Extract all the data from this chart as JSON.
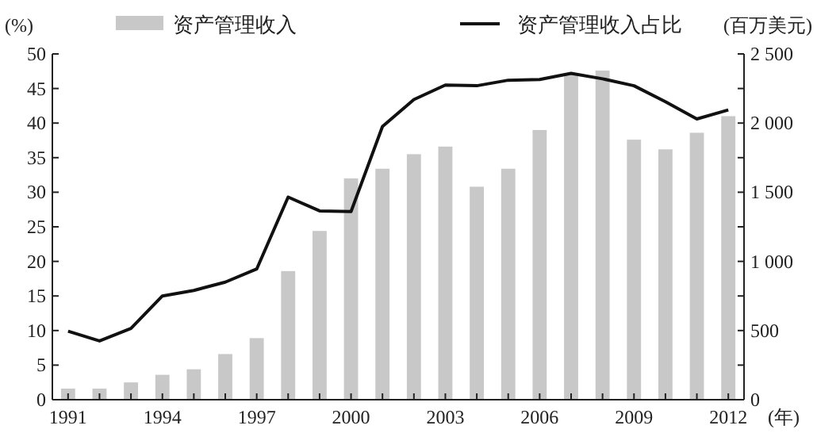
{
  "chart_data": {
    "type": "bar",
    "categories": [
      "1991",
      null,
      null,
      "1994",
      null,
      null,
      "1997",
      null,
      null,
      "2000",
      null,
      null,
      "2003",
      null,
      null,
      "2006",
      null,
      null,
      "2009",
      null,
      null,
      "2012"
    ],
    "series": [
      {
        "name": "资产管理收入",
        "axis": "y2",
        "color": "#c8c8c8",
        "values": [
          80,
          80,
          125,
          180,
          220,
          330,
          445,
          930,
          1220,
          1600,
          1670,
          1775,
          1830,
          1540,
          1670,
          1950,
          2360,
          2380,
          1880,
          1810,
          1930,
          2050
        ]
      },
      {
        "name": "资产管理收入占比",
        "type": "line",
        "color": "#111111",
        "values": [
          9.9,
          8.5,
          10.3,
          15.0,
          15.8,
          17.0,
          18.9,
          29.3,
          27.3,
          27.2,
          39.5,
          43.4,
          45.5,
          45.4,
          46.2,
          46.3,
          47.2,
          46.4,
          45.4,
          43.1,
          40.6,
          41.9
        ]
      }
    ],
    "ylabel": "(%)",
    "y2label": "(百万美元)",
    "xlabel": "(年)",
    "ylim": [
      0,
      50
    ],
    "yticks": [
      0,
      5,
      10,
      15,
      20,
      25,
      30,
      35,
      40,
      45,
      50
    ],
    "y2lim": [
      0,
      2500
    ],
    "y2ticks": [
      0,
      {
        "value": 250,
        "label": null
      },
      500,
      {
        "value": 750,
        "label": null
      },
      {
        "value": 1000,
        "label": "1 000"
      },
      {
        "value": 1250,
        "label": null
      },
      {
        "value": 1500,
        "label": "1 500"
      },
      {
        "value": 1750,
        "label": null
      },
      {
        "value": 2000,
        "label": "2 000"
      },
      {
        "value": 2250,
        "label": null
      },
      {
        "value": 2500,
        "label": "2 500"
      }
    ],
    "legend": "top",
    "grid": false,
    "marker": "none",
    "line_style": "solid"
  }
}
